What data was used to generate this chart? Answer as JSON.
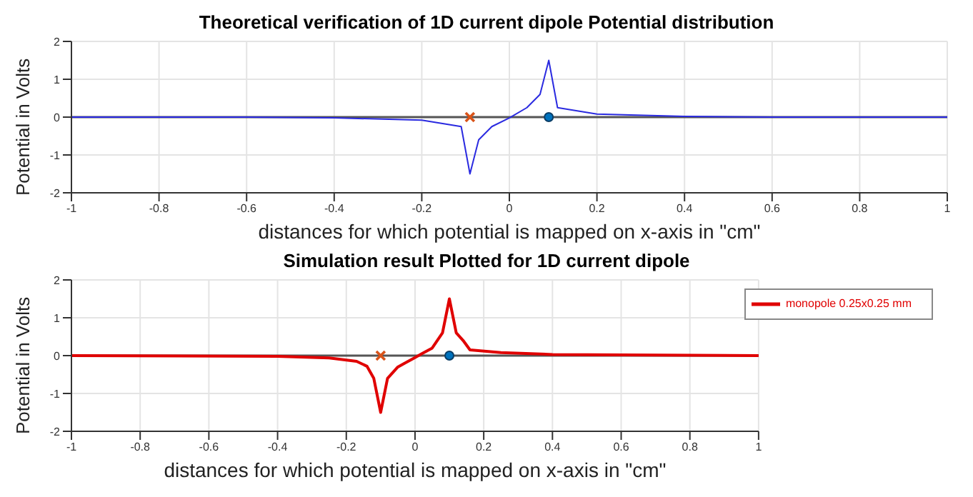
{
  "chart_data": [
    {
      "type": "line",
      "title": "Theoretical verification of 1D current dipole Potential distribution",
      "xlabel": "distances for which potential is mapped on x-axis in \"cm\"",
      "ylabel": "Potential in Volts",
      "xlim": [
        -1,
        1
      ],
      "xticks": [
        -1,
        -0.8,
        -0.6,
        -0.4,
        -0.2,
        0,
        0.2,
        0.4,
        0.6,
        0.8,
        1
      ],
      "ylim": [
        -2,
        2
      ],
      "yticks": [
        -2,
        -1,
        0,
        1,
        2
      ],
      "grid": true,
      "legend": false,
      "marker": "none",
      "line_style": "solid",
      "ref_lines": [
        {
          "axis": "y",
          "value": 0,
          "color": "#555555"
        }
      ],
      "series": [
        {
          "type": "line",
          "color": "#2a2ae0",
          "x": [
            -1,
            -0.6,
            -0.4,
            -0.2,
            -0.11,
            -0.09,
            -0.07,
            -0.04,
            0,
            0.04,
            0.07,
            0.09,
            0.11,
            0.2,
            0.4,
            0.6,
            1
          ],
          "values": [
            0,
            0,
            -0.02,
            -0.08,
            -0.25,
            -1.5,
            -0.6,
            -0.25,
            -0.02,
            0.25,
            0.6,
            1.5,
            0.25,
            0.08,
            0.02,
            0,
            0
          ]
        },
        {
          "type": "scatter",
          "marker": "cross",
          "color": "#d95319",
          "x": [
            -0.09
          ],
          "values": [
            0
          ]
        },
        {
          "type": "scatter",
          "marker": "circle",
          "color": "#0072bd",
          "x": [
            0.09
          ],
          "values": [
            0
          ]
        }
      ]
    },
    {
      "type": "line",
      "title": "Simulation result Plotted for 1D current dipole",
      "xlabel": "distances for which potential is mapped on x-axis in \"cm\"",
      "ylabel": "Potential in Volts",
      "xlim": [
        -1,
        1
      ],
      "xticks": [
        -1,
        -0.8,
        -0.6,
        -0.4,
        -0.2,
        0,
        0.2,
        0.4,
        0.6,
        0.8,
        1
      ],
      "ylim": [
        -2,
        2
      ],
      "yticks": [
        -2,
        -1,
        0,
        1,
        2
      ],
      "grid": true,
      "legend": "top right",
      "marker": "none",
      "line_style": "solid",
      "ref_lines": [
        {
          "axis": "y",
          "value": 0,
          "color": "#555555"
        }
      ],
      "series": [
        {
          "type": "line",
          "name": "monopole 0.25x0.25 mm",
          "color": "#e00000",
          "x": [
            -1,
            -0.4,
            -0.25,
            -0.17,
            -0.14,
            -0.12,
            -0.1,
            -0.08,
            -0.05,
            -0.02,
            0,
            0.02,
            0.05,
            0.08,
            0.1,
            0.12,
            0.14,
            0.16,
            0.25,
            0.4,
            1
          ],
          "values": [
            0,
            -0.02,
            -0.06,
            -0.15,
            -0.28,
            -0.6,
            -1.5,
            -0.6,
            -0.3,
            -0.15,
            -0.05,
            0.05,
            0.2,
            0.6,
            1.5,
            0.6,
            0.4,
            0.15,
            0.08,
            0.03,
            0
          ]
        },
        {
          "type": "scatter",
          "marker": "cross",
          "color": "#d95319",
          "x": [
            -0.1
          ],
          "values": [
            0
          ]
        },
        {
          "type": "scatter",
          "marker": "circle",
          "color": "#0072bd",
          "x": [
            0.1
          ],
          "values": [
            0
          ]
        }
      ]
    }
  ]
}
